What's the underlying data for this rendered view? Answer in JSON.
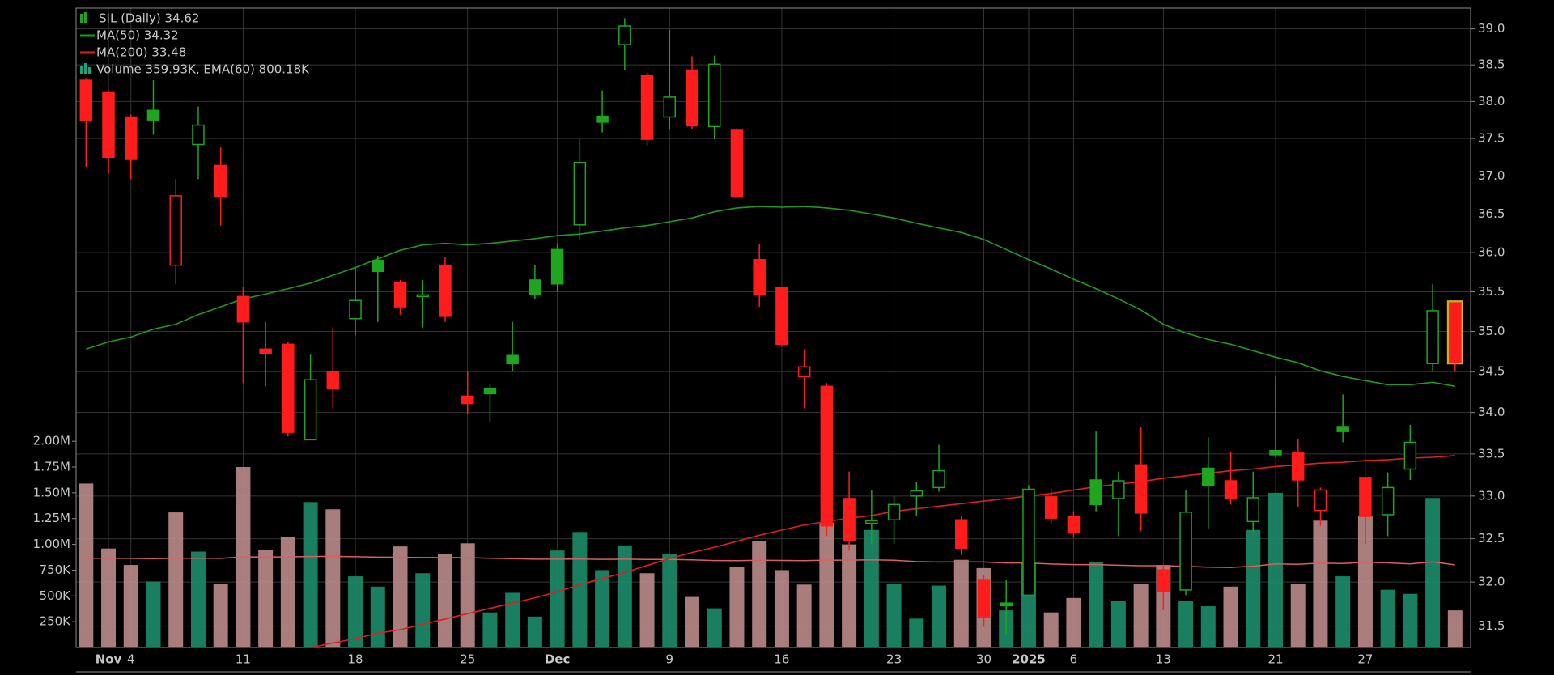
{
  "chart_data": {
    "type": "candlestick",
    "title": "SIL (Daily) 34.62",
    "categories": [
      null,
      "Nov",
      "4",
      null,
      null,
      null,
      null,
      "11",
      null,
      null,
      null,
      null,
      "18",
      null,
      null,
      null,
      null,
      "25",
      null,
      null,
      null,
      "Dec",
      null,
      null,
      null,
      null,
      "9",
      null,
      null,
      null,
      null,
      "16",
      null,
      null,
      null,
      null,
      "23",
      null,
      null,
      null,
      "30",
      null,
      "2025",
      null,
      "6",
      null,
      null,
      null,
      "13",
      null,
      null,
      null,
      null,
      "21",
      null,
      null,
      null,
      "27",
      null,
      null,
      null,
      null
    ],
    "open": [
      38.29,
      38.12,
      37.79,
      37.88,
      35.84,
      37.42,
      37.14,
      35.44,
      34.78,
      34.84,
      33.67,
      34.5,
      35.16,
      35.9,
      35.62,
      35.44,
      35.84,
      34.2,
      34.29,
      34.7,
      35.65,
      36.04,
      36.36,
      37.8,
      38.78,
      38.35,
      37.79,
      38.43,
      37.66,
      37.61,
      35.91,
      35.55,
      34.44,
      34.32,
      32.97,
      32.68,
      32.72,
      33.0,
      33.1,
      32.72,
      32.02,
      31.76,
      31.85,
      32.99,
      32.76,
      33.19,
      32.97,
      33.37,
      32.14,
      31.91,
      33.33,
      33.18,
      32.7,
      33.54,
      33.51,
      32.83,
      33.83,
      33.22,
      32.78,
      33.32,
      34.6,
      35.36
    ],
    "high": [
      38.32,
      38.15,
      37.82,
      38.29,
      36.96,
      37.93,
      37.38,
      35.56,
      35.12,
      34.87,
      34.71,
      35.05,
      35.81,
      35.96,
      35.65,
      35.65,
      35.94,
      34.5,
      34.34,
      35.12,
      35.84,
      36.12,
      37.49,
      38.15,
      39.15,
      38.4,
      38.99,
      38.62,
      38.63,
      37.64,
      36.11,
      35.56,
      34.78,
      34.36,
      33.29,
      33.07,
      33.0,
      33.17,
      33.61,
      32.76,
      32.08,
      32.02,
      33.13,
      33.08,
      32.82,
      33.77,
      33.29,
      33.83,
      32.19,
      33.07,
      33.7,
      33.52,
      33.29,
      34.44,
      33.68,
      33.1,
      34.22,
      33.22,
      33.28,
      33.85,
      35.6,
      35.36
    ],
    "low": [
      37.12,
      37.03,
      36.96,
      37.55,
      35.6,
      36.96,
      36.35,
      34.36,
      34.32,
      33.71,
      33.67,
      34.05,
      34.95,
      35.12,
      35.21,
      35.05,
      35.12,
      33.98,
      33.89,
      34.5,
      35.41,
      35.5,
      36.17,
      37.58,
      38.43,
      37.4,
      37.62,
      37.62,
      37.49,
      36.71,
      35.31,
      34.81,
      34.05,
      32.53,
      32.36,
      32.44,
      32.44,
      32.76,
      33.05,
      32.31,
      31.49,
      31.4,
      31.85,
      32.67,
      32.51,
      32.82,
      32.53,
      32.59,
      31.68,
      31.85,
      32.62,
      32.9,
      32.56,
      33.46,
      32.87,
      32.65,
      33.64,
      32.44,
      32.53,
      33.19,
      34.5,
      34.5
    ],
    "close": [
      37.74,
      37.25,
      37.22,
      37.75,
      36.74,
      37.68,
      36.73,
      35.12,
      34.73,
      33.76,
      34.4,
      34.29,
      35.39,
      35.76,
      35.31,
      35.46,
      35.19,
      34.11,
      34.23,
      34.6,
      35.47,
      35.6,
      37.18,
      37.72,
      39.04,
      37.49,
      38.06,
      37.67,
      38.51,
      36.73,
      35.46,
      34.84,
      34.56,
      32.65,
      32.48,
      32.71,
      32.9,
      33.06,
      33.3,
      32.39,
      31.6,
      31.73,
      33.08,
      32.74,
      32.57,
      32.9,
      33.18,
      32.8,
      31.89,
      32.81,
      33.12,
      32.97,
      32.98,
      33.49,
      33.19,
      33.07,
      33.77,
      32.76,
      33.1,
      33.64,
      35.26,
      34.62
    ],
    "up_color": "#1fa51f",
    "down_color": "#ff1c1c",
    "highlight_color": "#c9b21e",
    "overlays": [
      {
        "name": "MA(50) 34.32",
        "color": "#1f9a1f",
        "values": [
          34.78,
          34.87,
          34.93,
          35.03,
          35.09,
          35.21,
          35.31,
          35.41,
          35.47,
          35.54,
          35.61,
          35.71,
          35.81,
          35.92,
          36.03,
          36.1,
          36.12,
          36.1,
          36.12,
          36.15,
          36.18,
          36.22,
          36.24,
          36.28,
          36.32,
          36.35,
          36.4,
          36.45,
          36.53,
          36.58,
          36.6,
          36.59,
          36.6,
          36.58,
          36.55,
          36.5,
          36.45,
          36.38,
          36.32,
          36.26,
          36.17,
          36.04,
          35.91,
          35.79,
          35.66,
          35.54,
          35.41,
          35.27,
          35.09,
          34.98,
          34.9,
          34.84,
          34.76,
          34.68,
          34.61,
          34.51,
          34.44,
          34.39,
          34.34,
          34.34,
          34.37,
          34.32
        ]
      },
      {
        "name": "MA(200) 33.48",
        "color": "#dd2020",
        "values": [
          30.75,
          30.8,
          30.85,
          30.9,
          30.95,
          31.0,
          31.05,
          31.1,
          31.15,
          31.2,
          31.26,
          31.31,
          31.36,
          31.42,
          31.46,
          31.52,
          31.58,
          31.64,
          31.7,
          31.76,
          31.82,
          31.89,
          31.97,
          32.04,
          32.11,
          32.19,
          32.27,
          32.34,
          32.4,
          32.47,
          32.54,
          32.6,
          32.66,
          32.7,
          32.74,
          32.77,
          32.82,
          32.85,
          32.88,
          32.91,
          32.94,
          32.97,
          33.0,
          33.03,
          33.07,
          33.11,
          33.14,
          33.17,
          33.21,
          33.24,
          33.27,
          33.3,
          33.32,
          33.35,
          33.37,
          33.39,
          33.4,
          33.42,
          33.43,
          33.45,
          33.46,
          33.48
        ]
      }
    ],
    "volume": {
      "name": "Volume 359.93K, EMA(60) 800.18K",
      "axis": "y2",
      "color": "#17a37c",
      "up_color": "#1b8a68",
      "down_color": "#b88888",
      "values": [
        1590000,
        960000,
        800000,
        640000,
        1310000,
        930000,
        620000,
        1750000,
        950000,
        1070000,
        1410000,
        1340000,
        690000,
        590000,
        980000,
        720000,
        910000,
        1010000,
        340000,
        530000,
        300000,
        940000,
        1120000,
        750000,
        990000,
        720000,
        910000,
        490000,
        380000,
        780000,
        1030000,
        750000,
        610000,
        1210000,
        1000000,
        1140000,
        620000,
        280000,
        600000,
        850000,
        770000,
        360000,
        820000,
        340000,
        480000,
        830000,
        450000,
        620000,
        800000,
        450000,
        400000,
        590000,
        1140000,
        1500000,
        620000,
        1230000,
        690000,
        1280000,
        560000,
        520000,
        1450000,
        359930
      ],
      "ema_color": "#d86060",
      "ema": [
        865000,
        866000,
        864000,
        862000,
        866000,
        866000,
        864000,
        878000,
        877000,
        878000,
        882000,
        884000,
        880000,
        876000,
        875000,
        872000,
        872000,
        871000,
        866000,
        862000,
        856000,
        856000,
        857000,
        855000,
        856000,
        853000,
        854000,
        849000,
        843000,
        842000,
        845000,
        844000,
        841000,
        846000,
        847000,
        850000,
        845000,
        833000,
        829000,
        830000,
        829000,
        819000,
        819000,
        809000,
        804000,
        804000,
        797000,
        793000,
        793000,
        786000,
        779000,
        776000,
        788000,
        810000,
        806000,
        818000,
        815000,
        827000,
        820000,
        811000,
        830000,
        800180
      ]
    },
    "log_scale": true,
    "grid": true,
    "ylim": [
      31.26,
      39.29
    ],
    "yticks": [
      {
        "value": 39,
        "label": "39.0"
      },
      38.5,
      {
        "value": 38,
        "label": "38.0"
      },
      37.5,
      {
        "value": 37,
        "label": "37.0"
      },
      36.5,
      {
        "value": 36,
        "label": "36.0"
      },
      35.5,
      {
        "value": 35,
        "label": "35.0"
      },
      34.5,
      {
        "value": 34,
        "label": "34.0"
      },
      33.5,
      {
        "value": 33,
        "label": "33.0"
      },
      32.5,
      {
        "value": 32,
        "label": "32.0"
      },
      31.5
    ],
    "y2lim": [
      0,
      6200000
    ],
    "y2ticks": [
      {
        "value": 250000,
        "label": "250K"
      },
      {
        "value": 500000,
        "label": "500K"
      },
      {
        "value": 750000,
        "label": "750K"
      },
      {
        "value": 1000000,
        "label": "1.00M"
      },
      {
        "value": 1250000,
        "label": "1.25M"
      },
      {
        "value": 1500000,
        "label": "1.50M"
      },
      {
        "value": 1750000,
        "label": "1.75M"
      },
      {
        "value": 2000000,
        "label": "2.00M"
      }
    ]
  }
}
